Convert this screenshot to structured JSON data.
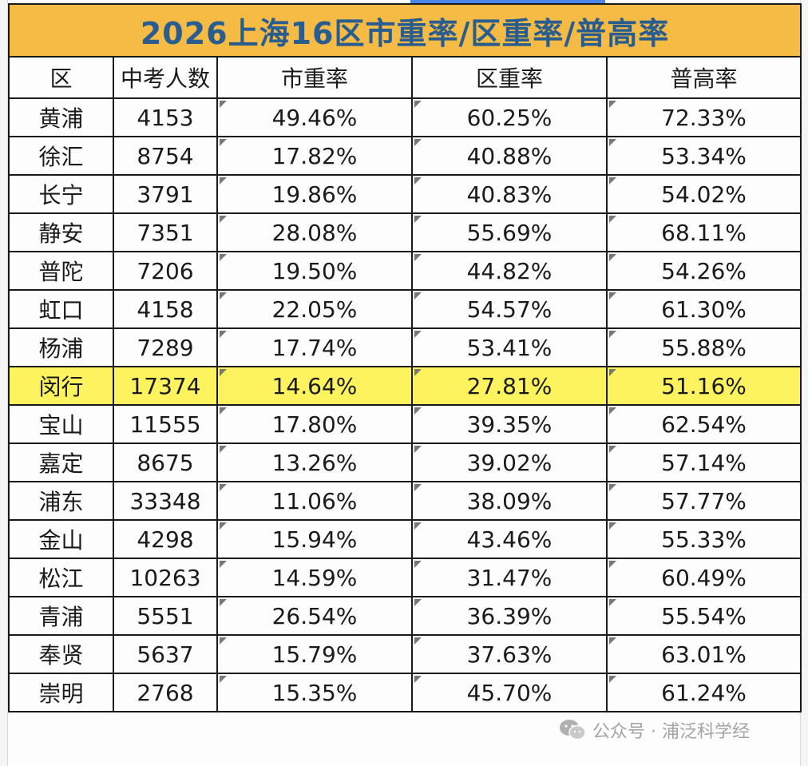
{
  "title": "2026上海16区市重率/区重率/普高率",
  "headers": [
    "区",
    "中考人数",
    "市重率",
    "区重率",
    "普高率"
  ],
  "rows": [
    {
      "district": "黄浦",
      "count": "4153",
      "city_rate": "49.46%",
      "district_rate": "60.25%",
      "highschool_rate": "72.33%"
    },
    {
      "district": "徐汇",
      "count": "8754",
      "city_rate": "17.82%",
      "district_rate": "40.88%",
      "highschool_rate": "53.34%"
    },
    {
      "district": "长宁",
      "count": "3791",
      "city_rate": "19.86%",
      "district_rate": "40.83%",
      "highschool_rate": "54.02%"
    },
    {
      "district": "静安",
      "count": "7351",
      "city_rate": "28.08%",
      "district_rate": "55.69%",
      "highschool_rate": "68.11%"
    },
    {
      "district": "普陀",
      "count": "7206",
      "city_rate": "19.50%",
      "district_rate": "44.82%",
      "highschool_rate": "54.26%"
    },
    {
      "district": "虹口",
      "count": "4158",
      "city_rate": "22.05%",
      "district_rate": "54.57%",
      "highschool_rate": "61.30%"
    },
    {
      "district": "杨浦",
      "count": "7289",
      "city_rate": "17.74%",
      "district_rate": "53.41%",
      "highschool_rate": "55.88%"
    },
    {
      "district": "闵行",
      "count": "17374",
      "city_rate": "14.64%",
      "district_rate": "27.81%",
      "highschool_rate": "51.16%",
      "highlighted": true
    },
    {
      "district": "宝山",
      "count": "11555",
      "city_rate": "17.80%",
      "district_rate": "39.35%",
      "highschool_rate": "62.54%"
    },
    {
      "district": "嘉定",
      "count": "8675",
      "city_rate": "13.26%",
      "district_rate": "39.02%",
      "highschool_rate": "57.14%"
    },
    {
      "district": "浦东",
      "count": "33348",
      "city_rate": "11.06%",
      "district_rate": "38.09%",
      "highschool_rate": "57.77%"
    },
    {
      "district": "金山",
      "count": "4298",
      "city_rate": "15.94%",
      "district_rate": "43.46%",
      "highschool_rate": "55.33%"
    },
    {
      "district": "松江",
      "count": "10263",
      "city_rate": "14.59%",
      "district_rate": "31.47%",
      "highschool_rate": "60.49%"
    },
    {
      "district": "青浦",
      "count": "5551",
      "city_rate": "26.54%",
      "district_rate": "36.39%",
      "highschool_rate": "55.54%"
    },
    {
      "district": "奉贤",
      "count": "5637",
      "city_rate": "15.79%",
      "district_rate": "37.63%",
      "highschool_rate": "63.01%"
    },
    {
      "district": "崇明",
      "count": "2768",
      "city_rate": "15.35%",
      "district_rate": "45.70%",
      "highschool_rate": "61.24%"
    }
  ],
  "watermark": {
    "text": "公众号 · 浦泛科学经",
    "icon": "wechat-icon"
  },
  "colors": {
    "title_bg": "#f5bb45",
    "title_text": "#2a5d8f",
    "highlight_bg": "#fcf35e",
    "grid": "#1a1a1a"
  }
}
